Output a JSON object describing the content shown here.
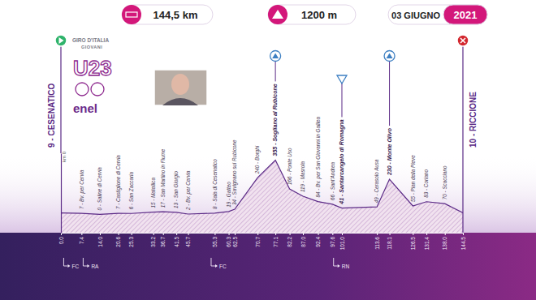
{
  "chart_data": {
    "type": "area",
    "annotations": {
      "distance": "144,5 km",
      "climb": "1200 m",
      "date": "03 GIUGNO",
      "year": "2021",
      "start_km": "km 0",
      "logo": [
        "GIRO D'ITALIA",
        "GIOVANI",
        "U23",
        "enel"
      ]
    },
    "x": [
      0,
      7.4,
      14,
      20.6,
      25.3,
      33.2,
      36.7,
      41.5,
      45.7,
      55.3,
      60.3,
      62.5,
      70.7,
      77.1,
      82.2,
      87,
      92.4,
      97.6,
      101,
      113.6,
      118.1,
      126.5,
      131.4,
      138,
      144.5
    ],
    "values": [
      9,
      7,
      0,
      7,
      6,
      15,
      17,
      13,
      2,
      8,
      19,
      34,
      240,
      355,
      166,
      119,
      84,
      66,
      41,
      49,
      230,
      55,
      83,
      70,
      10
    ],
    "point_labels": [
      "9 - CESENATICO",
      "7 - Bv. per Cervia",
      "0 - Saline di Cervia",
      "7 - Castiglione di Cervia",
      "6 - San Zaccaria",
      "15 - Matellica",
      "17 - San Martino in Fiume",
      "13 - San Giorgio",
      "2 - Bv. per Cervia",
      "8 - Sala di Cesenatico",
      "19 - Gatteo",
      "34 - Savignano sul Rubicone",
      "240 - Borghi",
      "355 - Sogliano al Rubicone",
      "166 - Ponte Uso",
      "119 - Masrola",
      "84 - Bv. per San Giovanni in Galilea",
      "66 - Sant'Andrea",
      "41 - Santarcangelo di Romagna",
      "49 - Cerasolo Ausa",
      "230 - Monte Olivo",
      "55 - Pian della Pieve",
      "83 - Coriano",
      "70 - Scacciano",
      "10 - RICCIONE"
    ],
    "gpm": [
      77.1,
      118.1
    ],
    "sprint": [
      101
    ],
    "regions": [
      {
        "x": 1,
        "label": "FC"
      },
      {
        "x": 8,
        "label": "RA"
      },
      {
        "x": 54,
        "label": "FC"
      },
      {
        "x": 98,
        "label": "RN"
      }
    ],
    "xlim": [
      0,
      144.5
    ],
    "xticks": [
      {
        "value": 0,
        "label": "0.0"
      },
      7.4,
      {
        "value": 14,
        "label": "14.0"
      },
      20.6,
      25.3,
      33.2,
      36.7,
      41.5,
      45.7,
      55.3,
      60.3,
      62.5,
      70.7,
      77.1,
      82.2,
      {
        "value": 87,
        "label": "87.0"
      },
      92.4,
      97.6,
      {
        "value": 101,
        "label": "101.0"
      },
      113.6,
      118.1,
      126.5,
      131.4,
      {
        "value": 138,
        "label": "138.0"
      },
      144.5
    ],
    "ylim": [
      -120,
      400
    ],
    "yticks": [],
    "tick_labels": "x",
    "color": "#5b2a86",
    "grid": false
  }
}
